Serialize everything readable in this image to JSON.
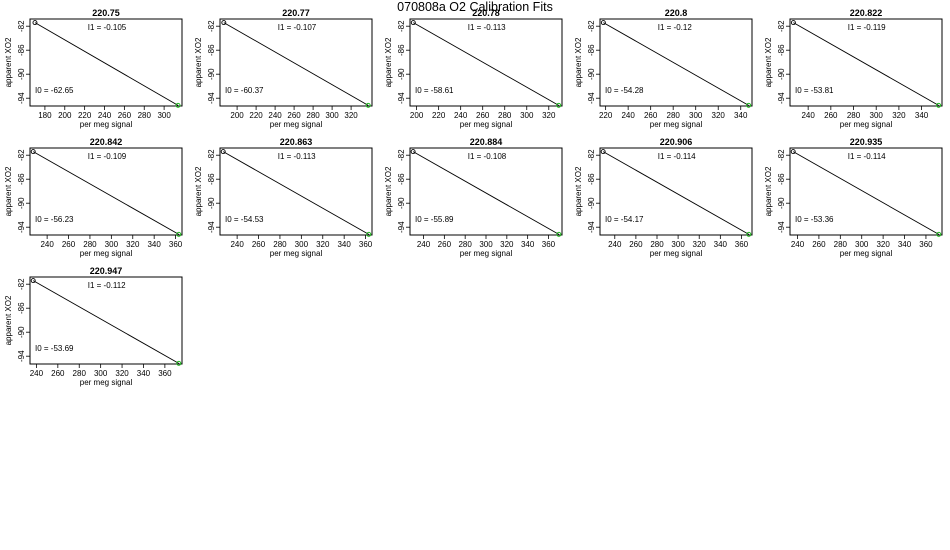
{
  "title": "070808a   O2 Calibration Fits",
  "colors": {
    "line": "#000000",
    "first_point": "#000000",
    "last_point": "#22bb22"
  },
  "chart_data": [
    {
      "type": "line",
      "title": "220.75",
      "xlabel": "per meg signal",
      "ylabel": "apparent XO2",
      "xlim": [
        165,
        318
      ],
      "xticks": [
        180,
        200,
        220,
        240,
        260,
        280,
        300
      ],
      "ylim": [
        -95.3,
        -80.8
      ],
      "yticks": [
        -82,
        -86,
        -90,
        -94
      ],
      "points": [
        [
          170,
          -81.4
        ],
        [
          314,
          -95.2
        ]
      ],
      "i1_label": "I1 =  -0.105",
      "i0_label": "I0 =  -62.65"
    },
    {
      "type": "line",
      "title": "220.77",
      "xlabel": "per meg signal",
      "ylabel": "apparent XO2",
      "xlim": [
        182,
        342
      ],
      "xticks": [
        200,
        220,
        240,
        260,
        280,
        300,
        320
      ],
      "ylim": [
        -95.3,
        -80.8
      ],
      "yticks": [
        -82,
        -86,
        -90,
        -94
      ],
      "points": [
        [
          186,
          -81.4
        ],
        [
          338,
          -95.2
        ]
      ],
      "i1_label": "I1 =  -0.107",
      "i0_label": "I0 =  -60.37"
    },
    {
      "type": "line",
      "title": "220.78",
      "xlabel": "per meg signal",
      "ylabel": "apparent XO2",
      "xlim": [
        194,
        332
      ],
      "xticks": [
        200,
        220,
        240,
        260,
        280,
        300,
        320
      ],
      "ylim": [
        -95.3,
        -80.8
      ],
      "yticks": [
        -82,
        -86,
        -90,
        -94
      ],
      "points": [
        [
          197,
          -81.4
        ],
        [
          329,
          -95.2
        ]
      ],
      "i1_label": "I1 =  -0.113",
      "i0_label": "I0 =  -58.61"
    },
    {
      "type": "line",
      "title": "220.8",
      "xlabel": "per meg signal",
      "ylabel": "apparent XO2",
      "xlim": [
        215,
        350
      ],
      "xticks": [
        220,
        240,
        260,
        280,
        300,
        320,
        340
      ],
      "ylim": [
        -95.3,
        -80.8
      ],
      "yticks": [
        -82,
        -86,
        -90,
        -94
      ],
      "points": [
        [
          218,
          -81.4
        ],
        [
          347,
          -95.2
        ]
      ],
      "i1_label": "I1 =  -0.12",
      "i0_label": "I0 =  -54.28"
    },
    {
      "type": "line",
      "title": "220.822",
      "xlabel": "per meg signal",
      "ylabel": "apparent XO2",
      "xlim": [
        224,
        358
      ],
      "xticks": [
        240,
        260,
        280,
        300,
        320,
        340
      ],
      "ylim": [
        -95.3,
        -80.8
      ],
      "yticks": [
        -82,
        -86,
        -90,
        -94
      ],
      "points": [
        [
          227,
          -81.4
        ],
        [
          355,
          -95.2
        ]
      ],
      "i1_label": "I1 =  -0.119",
      "i0_label": "I0 =  -53.81"
    },
    {
      "type": "line",
      "title": "220.842",
      "xlabel": "per meg signal",
      "ylabel": "apparent XO2",
      "xlim": [
        224,
        366
      ],
      "xticks": [
        240,
        260,
        280,
        300,
        320,
        340,
        360
      ],
      "ylim": [
        -95.3,
        -80.8
      ],
      "yticks": [
        -82,
        -86,
        -90,
        -94
      ],
      "points": [
        [
          227,
          -81.4
        ],
        [
          363,
          -95.2
        ]
      ],
      "i1_label": "I1 =  -0.109",
      "i0_label": "I0 =  -56.23"
    },
    {
      "type": "line",
      "title": "220.863",
      "xlabel": "per meg signal",
      "ylabel": "apparent XO2",
      "xlim": [
        224,
        366
      ],
      "xticks": [
        240,
        260,
        280,
        300,
        320,
        340,
        360
      ],
      "ylim": [
        -95.3,
        -80.8
      ],
      "yticks": [
        -82,
        -86,
        -90,
        -94
      ],
      "points": [
        [
          227,
          -81.4
        ],
        [
          363,
          -95.2
        ]
      ],
      "i1_label": "I1 =  -0.113",
      "i0_label": "I0 =  -54.53"
    },
    {
      "type": "line",
      "title": "220.884",
      "xlabel": "per meg signal",
      "ylabel": "apparent XO2",
      "xlim": [
        227,
        373
      ],
      "xticks": [
        240,
        260,
        280,
        300,
        320,
        340,
        360
      ],
      "ylim": [
        -95.3,
        -80.8
      ],
      "yticks": [
        -82,
        -86,
        -90,
        -94
      ],
      "points": [
        [
          230,
          -81.4
        ],
        [
          370,
          -95.2
        ]
      ],
      "i1_label": "I1 =  -0.108",
      "i0_label": "I0 =  -55.89"
    },
    {
      "type": "line",
      "title": "220.906",
      "xlabel": "per meg signal",
      "ylabel": "apparent XO2",
      "xlim": [
        226,
        370
      ],
      "xticks": [
        240,
        260,
        280,
        300,
        320,
        340,
        360
      ],
      "ylim": [
        -95.3,
        -80.8
      ],
      "yticks": [
        -82,
        -86,
        -90,
        -94
      ],
      "points": [
        [
          229,
          -81.4
        ],
        [
          367,
          -95.2
        ]
      ],
      "i1_label": "I1 =  -0.114",
      "i0_label": "I0 =  -54.17"
    },
    {
      "type": "line",
      "title": "220.935",
      "xlabel": "per meg signal",
      "ylabel": "apparent XO2",
      "xlim": [
        233,
        375
      ],
      "xticks": [
        240,
        260,
        280,
        300,
        320,
        340,
        360
      ],
      "ylim": [
        -95.3,
        -80.8
      ],
      "yticks": [
        -82,
        -86,
        -90,
        -94
      ],
      "points": [
        [
          236,
          -81.4
        ],
        [
          372,
          -95.2
        ]
      ],
      "i1_label": "I1 =  -0.114",
      "i0_label": "I0 =  -53.36"
    },
    {
      "type": "line",
      "title": "220.947",
      "xlabel": "per meg signal",
      "ylabel": "apparent XO2",
      "xlim": [
        234,
        376
      ],
      "xticks": [
        240,
        260,
        280,
        300,
        320,
        340,
        360
      ],
      "ylim": [
        -95.3,
        -80.8
      ],
      "yticks": [
        -82,
        -86,
        -90,
        -94
      ],
      "points": [
        [
          237,
          -81.4
        ],
        [
          373,
          -95.2
        ]
      ],
      "i1_label": "I1 =  -0.112",
      "i0_label": "I0 =  -53.69"
    }
  ]
}
